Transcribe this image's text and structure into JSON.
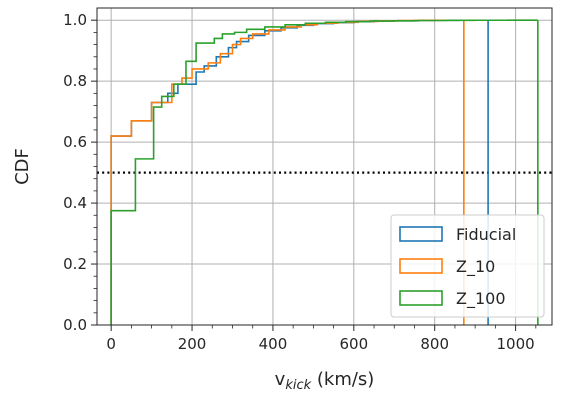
{
  "chart_data": {
    "type": "line",
    "subtype": "step-cdf",
    "xlabel_main": "v",
    "xlabel_sub": "kick",
    "xlabel_units": " (km/s)",
    "ylabel": "CDF",
    "xlim": [
      -35,
      1090
    ],
    "ylim": [
      0,
      1.04
    ],
    "grid": true,
    "legend_position": "lower right",
    "xticks": [
      0,
      200,
      400,
      600,
      800,
      1000
    ],
    "yticks": [
      0.0,
      0.2,
      0.4,
      0.6,
      0.8,
      1.0
    ],
    "reference_line": {
      "y": 0.5,
      "style": "dotted",
      "color": "#000000"
    },
    "series": [
      {
        "name": "Fiducial",
        "color": "#1f77b4",
        "x": [
          0,
          50,
          100,
          140,
          165,
          210,
          230,
          260,
          290,
          310,
          340,
          380,
          420,
          460,
          500,
          550,
          600,
          650,
          700,
          750,
          800,
          860,
          932
        ],
        "y": [
          0.62,
          0.67,
          0.73,
          0.76,
          0.79,
          0.83,
          0.85,
          0.88,
          0.91,
          0.93,
          0.95,
          0.965,
          0.975,
          0.983,
          0.989,
          0.992,
          0.995,
          0.997,
          0.998,
          0.999,
          0.9995,
          0.9998,
          1.0
        ]
      },
      {
        "name": "Z_10",
        "color": "#ff7f0e",
        "x": [
          0,
          50,
          100,
          150,
          175,
          200,
          240,
          270,
          300,
          320,
          350,
          390,
          430,
          470,
          510,
          560,
          610,
          660,
          710,
          760,
          810,
          872
        ],
        "y": [
          0.62,
          0.67,
          0.73,
          0.79,
          0.81,
          0.84,
          0.86,
          0.89,
          0.92,
          0.94,
          0.955,
          0.968,
          0.978,
          0.985,
          0.99,
          0.993,
          0.996,
          0.998,
          0.999,
          0.9995,
          0.9998,
          1.0
        ]
      },
      {
        "name": "Z_100",
        "color": "#2ca02c",
        "x": [
          0,
          60,
          105,
          125,
          155,
          185,
          210,
          255,
          275,
          305,
          335,
          380,
          430,
          480,
          530,
          580,
          640,
          700,
          760,
          830,
          900,
          980,
          1055
        ],
        "y": [
          0.375,
          0.545,
          0.715,
          0.75,
          0.79,
          0.865,
          0.925,
          0.94,
          0.955,
          0.96,
          0.97,
          0.978,
          0.985,
          0.99,
          0.993,
          0.995,
          0.997,
          0.998,
          0.999,
          0.9995,
          0.9998,
          0.9999,
          1.0
        ]
      }
    ]
  }
}
